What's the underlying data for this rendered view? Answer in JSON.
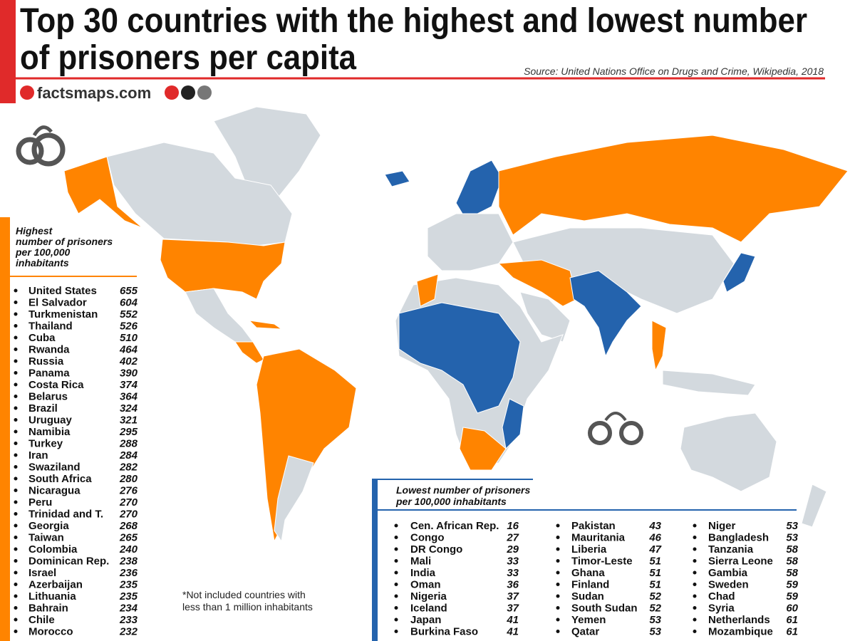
{
  "header": {
    "title_lines": [
      "Top 30 countries with the highest and lowest number",
      "of prisoners per capita"
    ],
    "source": "Source: United Nations Office on Drugs and Crime, Wikipedia, 2018",
    "logo": "factsmaps.com"
  },
  "highest": {
    "heading_lines": [
      "Highest",
      "number of prisoners",
      "per 100,000",
      "inhabitants"
    ],
    "items": [
      {
        "name": "United States",
        "value": 655
      },
      {
        "name": "El Salvador",
        "value": 604
      },
      {
        "name": "Turkmenistan",
        "value": 552
      },
      {
        "name": "Thailand",
        "value": 526
      },
      {
        "name": "Cuba",
        "value": 510
      },
      {
        "name": "Rwanda",
        "value": 464
      },
      {
        "name": "Russia",
        "value": 402
      },
      {
        "name": "Panama",
        "value": 390
      },
      {
        "name": "Costa Rica",
        "value": 374
      },
      {
        "name": "Belarus",
        "value": 364
      },
      {
        "name": "Brazil",
        "value": 324
      },
      {
        "name": "Uruguay",
        "value": 321
      },
      {
        "name": "Namibia",
        "value": 295
      },
      {
        "name": "Turkey",
        "value": 288
      },
      {
        "name": "Iran",
        "value": 284
      },
      {
        "name": "Swaziland",
        "value": 282
      },
      {
        "name": "South Africa",
        "value": 280
      },
      {
        "name": "Nicaragua",
        "value": 276
      },
      {
        "name": "Peru",
        "value": 270
      },
      {
        "name": "Trinidad and T.",
        "value": 270
      },
      {
        "name": "Georgia",
        "value": 268
      },
      {
        "name": "Taiwan",
        "value": 265
      },
      {
        "name": "Colombia",
        "value": 240
      },
      {
        "name": "Dominican Rep.",
        "value": 238
      },
      {
        "name": "Israel",
        "value": 236
      },
      {
        "name": "Azerbaijan",
        "value": 235
      },
      {
        "name": "Lithuania",
        "value": 235
      },
      {
        "name": "Bahrain",
        "value": 234
      },
      {
        "name": "Chile",
        "value": 233
      },
      {
        "name": "Morocco",
        "value": 232
      }
    ]
  },
  "lowest": {
    "heading_lines": [
      "Lowest number of prisoners",
      "per 100,000 inhabitants"
    ],
    "items": [
      {
        "name": "Cen. African Rep.",
        "value": 16
      },
      {
        "name": "Congo",
        "value": 27
      },
      {
        "name": "DR Congo",
        "value": 29
      },
      {
        "name": "Mali",
        "value": 33
      },
      {
        "name": "India",
        "value": 33
      },
      {
        "name": "Oman",
        "value": 36
      },
      {
        "name": "Nigeria",
        "value": 37
      },
      {
        "name": "Iceland",
        "value": 37
      },
      {
        "name": "Japan",
        "value": 41
      },
      {
        "name": "Burkina Faso",
        "value": 41
      },
      {
        "name": "Pakistan",
        "value": 43
      },
      {
        "name": "Mauritania",
        "value": 46
      },
      {
        "name": "Liberia",
        "value": 47
      },
      {
        "name": "Timor-Leste",
        "value": 51
      },
      {
        "name": "Ghana",
        "value": 51
      },
      {
        "name": "Finland",
        "value": 51
      },
      {
        "name": "Sudan",
        "value": 52
      },
      {
        "name": "South Sudan",
        "value": 52
      },
      {
        "name": "Yemen",
        "value": 53
      },
      {
        "name": "Qatar",
        "value": 53
      },
      {
        "name": "Niger",
        "value": 53
      },
      {
        "name": "Bangladesh",
        "value": 53
      },
      {
        "name": "Tanzania",
        "value": 58
      },
      {
        "name": "Sierra Leone",
        "value": 58
      },
      {
        "name": "Gambia",
        "value": 58
      },
      {
        "name": "Sweden",
        "value": 59
      },
      {
        "name": "Chad",
        "value": 59
      },
      {
        "name": "Syria",
        "value": 60
      },
      {
        "name": "Netherlands",
        "value": 61
      },
      {
        "name": "Mozambique",
        "value": 61
      }
    ]
  },
  "note_lines": [
    "*Not included countries with",
    "less than 1 million inhabitants"
  ]
}
